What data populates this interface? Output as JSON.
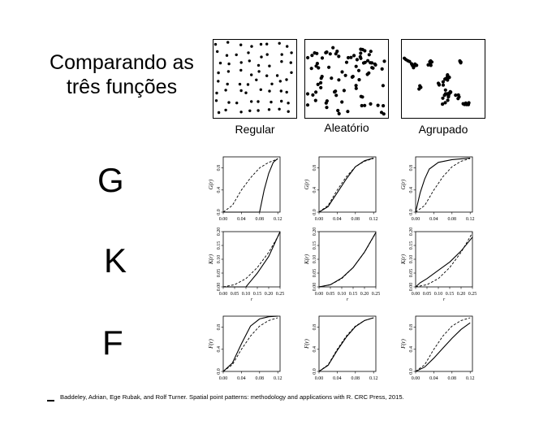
{
  "title": {
    "line1": "Comparando as",
    "line2": "três funções"
  },
  "patterns": [
    {
      "label": "Regular"
    },
    {
      "label": "Aleatório"
    },
    {
      "label": "Agrupado"
    }
  ],
  "functions": [
    {
      "label": "G",
      "ylabel": "G(r)",
      "xticks": [
        "0.00",
        "0.04",
        "0.08",
        "0.12"
      ],
      "yticks": [
        "0.0",
        "0.4",
        "0.8"
      ]
    },
    {
      "label": "K",
      "ylabel": "K(r)",
      "xticks": [
        "0.00",
        "0.05",
        "0.10",
        "0.15",
        "0.20",
        "0.25"
      ],
      "yticks": [
        "0.00",
        "0.05",
        "0.10",
        "0.15",
        "0.20"
      ],
      "xlabel": "r"
    },
    {
      "label": "F",
      "ylabel": "F(r)",
      "xticks": [
        "0.00",
        "0.04",
        "0.08",
        "0.12"
      ],
      "yticks": [
        "0.0",
        "0.4",
        "0.8"
      ]
    }
  ],
  "chart_data": [
    {
      "type": "line",
      "name": "G Regular",
      "xlim": [
        0,
        0.125
      ],
      "ylim": [
        0,
        1
      ],
      "series": [
        {
          "style": "solid",
          "x": [
            0,
            0.08,
            0.085,
            0.09,
            0.1,
            0.11,
            0.12
          ],
          "y": [
            0,
            0,
            0.2,
            0.4,
            0.7,
            0.9,
            0.97
          ]
        },
        {
          "style": "dashed",
          "x": [
            0,
            0.02,
            0.04,
            0.06,
            0.08,
            0.1,
            0.12
          ],
          "y": [
            0,
            0.12,
            0.4,
            0.62,
            0.8,
            0.9,
            0.96
          ]
        }
      ]
    },
    {
      "type": "line",
      "name": "G Aleatório",
      "xlim": [
        0,
        0.125
      ],
      "ylim": [
        0,
        1
      ],
      "series": [
        {
          "style": "solid",
          "x": [
            0,
            0.02,
            0.04,
            0.06,
            0.08,
            0.1,
            0.12
          ],
          "y": [
            0,
            0.1,
            0.35,
            0.6,
            0.82,
            0.93,
            0.98
          ]
        },
        {
          "style": "dashed",
          "x": [
            0,
            0.02,
            0.04,
            0.06,
            0.08,
            0.1,
            0.12
          ],
          "y": [
            0,
            0.12,
            0.4,
            0.64,
            0.82,
            0.92,
            0.97
          ]
        }
      ]
    },
    {
      "type": "line",
      "name": "G Agrupado",
      "xlim": [
        0,
        0.125
      ],
      "ylim": [
        0,
        1
      ],
      "series": [
        {
          "style": "solid",
          "x": [
            0,
            0.01,
            0.02,
            0.03,
            0.05,
            0.08,
            0.12
          ],
          "y": [
            0,
            0.35,
            0.6,
            0.78,
            0.9,
            0.95,
            0.98
          ]
        },
        {
          "style": "dashed",
          "x": [
            0,
            0.02,
            0.04,
            0.06,
            0.08,
            0.1,
            0.12
          ],
          "y": [
            0,
            0.12,
            0.4,
            0.64,
            0.82,
            0.92,
            0.97
          ]
        }
      ]
    },
    {
      "type": "line",
      "name": "K Regular",
      "xlim": [
        0,
        0.25
      ],
      "ylim": [
        0,
        0.2
      ],
      "series": [
        {
          "style": "solid",
          "x": [
            0,
            0.05,
            0.1,
            0.12,
            0.15,
            0.2,
            0.25
          ],
          "y": [
            0,
            0,
            0.0,
            0.02,
            0.05,
            0.11,
            0.2
          ]
        },
        {
          "style": "dashed",
          "x": [
            0,
            0.05,
            0.1,
            0.15,
            0.2,
            0.25
          ],
          "y": [
            0,
            0.008,
            0.03,
            0.07,
            0.125,
            0.196
          ]
        }
      ]
    },
    {
      "type": "line",
      "name": "K Aleatório",
      "xlim": [
        0,
        0.25
      ],
      "ylim": [
        0,
        0.2
      ],
      "series": [
        {
          "style": "solid",
          "x": [
            0,
            0.05,
            0.1,
            0.15,
            0.2,
            0.25
          ],
          "y": [
            0,
            0.008,
            0.032,
            0.07,
            0.126,
            0.197
          ]
        },
        {
          "style": "dashed",
          "x": [
            0,
            0.05,
            0.1,
            0.15,
            0.2,
            0.25
          ],
          "y": [
            0,
            0.008,
            0.03,
            0.07,
            0.125,
            0.196
          ]
        }
      ]
    },
    {
      "type": "line",
      "name": "K Agrupado",
      "xlim": [
        0,
        0.25
      ],
      "ylim": [
        0,
        0.2
      ],
      "series": [
        {
          "style": "solid",
          "x": [
            0,
            0.02,
            0.05,
            0.1,
            0.15,
            0.2,
            0.25
          ],
          "y": [
            0,
            0.015,
            0.03,
            0.06,
            0.09,
            0.13,
            0.18
          ]
        },
        {
          "style": "dashed",
          "x": [
            0,
            0.05,
            0.1,
            0.15,
            0.2,
            0.25
          ],
          "y": [
            0,
            0.008,
            0.03,
            0.07,
            0.125,
            0.196
          ]
        }
      ]
    },
    {
      "type": "line",
      "name": "F Regular",
      "xlim": [
        0,
        0.125
      ],
      "ylim": [
        0,
        1
      ],
      "series": [
        {
          "style": "solid",
          "x": [
            0,
            0.02,
            0.04,
            0.06,
            0.08,
            0.1,
            0.12
          ],
          "y": [
            0,
            0.15,
            0.5,
            0.82,
            0.95,
            0.99,
            1.0
          ]
        },
        {
          "style": "dashed",
          "x": [
            0,
            0.02,
            0.04,
            0.06,
            0.08,
            0.1,
            0.12
          ],
          "y": [
            0,
            0.12,
            0.4,
            0.64,
            0.82,
            0.92,
            0.97
          ]
        }
      ]
    },
    {
      "type": "line",
      "name": "F Aleatório",
      "xlim": [
        0,
        0.125
      ],
      "ylim": [
        0,
        1
      ],
      "series": [
        {
          "style": "solid",
          "x": [
            0,
            0.02,
            0.04,
            0.06,
            0.08,
            0.1,
            0.12
          ],
          "y": [
            0,
            0.11,
            0.38,
            0.62,
            0.81,
            0.92,
            0.97
          ]
        },
        {
          "style": "dashed",
          "x": [
            0,
            0.02,
            0.04,
            0.06,
            0.08,
            0.1,
            0.12
          ],
          "y": [
            0,
            0.12,
            0.4,
            0.64,
            0.82,
            0.92,
            0.97
          ]
        }
      ]
    },
    {
      "type": "line",
      "name": "F Agrupado",
      "xlim": [
        0,
        0.125
      ],
      "ylim": [
        0,
        1
      ],
      "series": [
        {
          "style": "solid",
          "x": [
            0,
            0.02,
            0.04,
            0.06,
            0.08,
            0.1,
            0.12
          ],
          "y": [
            0,
            0.08,
            0.24,
            0.42,
            0.6,
            0.76,
            0.88
          ]
        },
        {
          "style": "dashed",
          "x": [
            0,
            0.02,
            0.04,
            0.06,
            0.08,
            0.1,
            0.12
          ],
          "y": [
            0,
            0.12,
            0.4,
            0.64,
            0.82,
            0.92,
            0.97
          ]
        }
      ]
    }
  ],
  "citation": "Baddeley, Adrian, Ege Rubak, and Rolf Turner. Spatial point patterns: methodology and applications with R. CRC Press, 2015."
}
